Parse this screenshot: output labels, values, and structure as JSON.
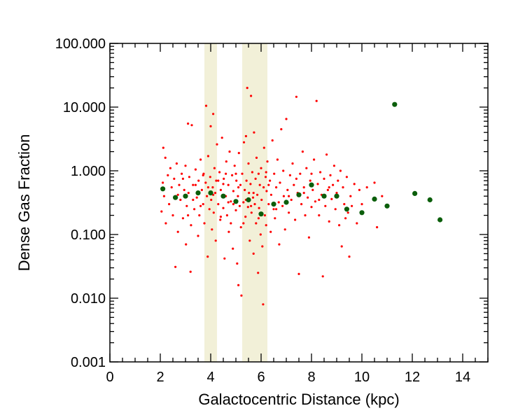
{
  "chart_data": {
    "type": "scatter",
    "xlabel": "Galactocentric Distance (kpc)",
    "ylabel": "Dense Gas Fraction",
    "xlim": [
      0,
      15
    ],
    "ylim": [
      0.001,
      100
    ],
    "yscale": "log",
    "x_ticks": [
      0,
      2,
      4,
      6,
      8,
      10,
      12,
      14
    ],
    "x_tick_labels": [
      "0",
      "2",
      "4",
      "6",
      "8",
      "10",
      "12",
      "14"
    ],
    "y_ticks": [
      0.001,
      0.01,
      0.1,
      1,
      10,
      100
    ],
    "y_tick_labels": [
      "0.001",
      "0.010",
      "0.100",
      "1.000",
      "10.000",
      "100.000"
    ],
    "shaded_bands": [
      {
        "x_start": 3.75,
        "x_end": 4.25,
        "color": "#f2f0d8"
      },
      {
        "x_start": 5.25,
        "x_end": 6.25,
        "color": "#f2f0d8"
      }
    ],
    "series": [
      {
        "color": "#ff0000",
        "marker_size": "small",
        "points": [
          [
            2.05,
            0.23
          ],
          [
            2.1,
            0.65
          ],
          [
            2.12,
            2.3
          ],
          [
            2.15,
            0.4
          ],
          [
            2.2,
            1.6
          ],
          [
            2.22,
            0.15
          ],
          [
            2.3,
            0.85
          ],
          [
            2.35,
            0.3
          ],
          [
            2.4,
            1.1
          ],
          [
            2.45,
            0.55
          ],
          [
            2.5,
            0.2
          ],
          [
            2.55,
            0.75
          ],
          [
            2.6,
            0.031
          ],
          [
            2.62,
            0.4
          ],
          [
            2.65,
            1.3
          ],
          [
            2.7,
            0.11
          ],
          [
            2.75,
            0.6
          ],
          [
            2.8,
            0.35
          ],
          [
            2.85,
            0.9
          ],
          [
            2.9,
            0.18
          ],
          [
            2.95,
            0.5
          ],
          [
            3.0,
            1.2
          ],
          [
            3.02,
            0.07
          ],
          [
            3.05,
            0.28
          ],
          [
            3.1,
            5.5
          ],
          [
            3.12,
            0.45
          ],
          [
            3.15,
            0.8
          ],
          [
            3.2,
            0.026
          ],
          [
            3.22,
            0.14
          ],
          [
            3.25,
            5.2
          ],
          [
            3.3,
            0.6
          ],
          [
            3.35,
            0.25
          ],
          [
            3.4,
            1.05
          ],
          [
            3.45,
            0.38
          ],
          [
            3.5,
            0.095
          ],
          [
            3.52,
            0.7
          ],
          [
            3.55,
            0.2
          ],
          [
            3.6,
            1.5
          ],
          [
            3.65,
            0.5
          ],
          [
            3.7,
            0.3
          ],
          [
            3.72,
            0.9
          ],
          [
            3.75,
            0.15
          ],
          [
            3.8,
            0.65
          ],
          [
            3.82,
            10.5
          ],
          [
            3.85,
            0.4
          ],
          [
            3.88,
            0.045
          ],
          [
            3.9,
            1.7
          ],
          [
            3.95,
            0.25
          ],
          [
            3.98,
            0.8
          ],
          [
            4.0,
            5.0
          ],
          [
            4.02,
            0.35
          ],
          [
            4.05,
            0.12
          ],
          [
            4.08,
            0.55
          ],
          [
            4.1,
            7.8
          ],
          [
            4.12,
            0.22
          ],
          [
            4.15,
            1.1
          ],
          [
            4.18,
            0.45
          ],
          [
            4.2,
            0.08
          ],
          [
            4.22,
            0.7
          ],
          [
            4.25,
            2.6
          ],
          [
            4.3,
            0.3
          ],
          [
            4.35,
            0.95
          ],
          [
            4.38,
            0.17
          ],
          [
            4.4,
            0.5
          ],
          [
            4.45,
            3.3
          ],
          [
            4.5,
            0.26
          ],
          [
            4.52,
            0.75
          ],
          [
            4.55,
            0.042
          ],
          [
            4.6,
            0.4
          ],
          [
            4.62,
            1.4
          ],
          [
            4.65,
            0.2
          ],
          [
            4.7,
            0.6
          ],
          [
            4.72,
            0.11
          ],
          [
            4.75,
            2.0
          ],
          [
            4.8,
            0.33
          ],
          [
            4.85,
            0.85
          ],
          [
            4.88,
            0.06
          ],
          [
            4.9,
            0.48
          ],
          [
            4.95,
            1.2
          ],
          [
            5.0,
            0.24
          ],
          [
            5.02,
            0.7
          ],
          [
            5.05,
            0.035
          ],
          [
            5.08,
            0.4
          ],
          [
            5.1,
            0.016
          ],
          [
            5.12,
            1.9
          ],
          [
            5.15,
            0.28
          ],
          [
            5.18,
            0.6
          ],
          [
            5.2,
            0.13
          ],
          [
            5.22,
            0.011
          ],
          [
            5.25,
            0.9
          ],
          [
            5.3,
            0.32
          ],
          [
            5.32,
            2.8
          ],
          [
            5.35,
            0.5
          ],
          [
            5.38,
            0.19
          ],
          [
            5.4,
            3.5
          ],
          [
            5.42,
            0.7
          ],
          [
            5.45,
            20.0
          ],
          [
            5.48,
            0.27
          ],
          [
            5.5,
            1.3
          ],
          [
            5.52,
            0.45
          ],
          [
            5.55,
            0.08
          ],
          [
            5.58,
            0.62
          ],
          [
            5.6,
            15.0
          ],
          [
            5.62,
            0.22
          ],
          [
            5.65,
            0.95
          ],
          [
            5.68,
            0.38
          ],
          [
            5.7,
            0.05
          ],
          [
            5.72,
            4.0
          ],
          [
            5.75,
            0.3
          ],
          [
            5.78,
            0.75
          ],
          [
            5.8,
            0.15
          ],
          [
            5.82,
            1.6
          ],
          [
            5.85,
            0.42
          ],
          [
            5.88,
            0.025
          ],
          [
            5.9,
            0.9
          ],
          [
            5.92,
            0.26
          ],
          [
            5.95,
            0.6
          ],
          [
            5.98,
            0.1
          ],
          [
            6.0,
            1.1
          ],
          [
            6.02,
            0.35
          ],
          [
            6.05,
            0.065
          ],
          [
            6.08,
            0.008
          ],
          [
            6.1,
            0.55
          ],
          [
            6.12,
            2.3
          ],
          [
            6.15,
            0.2
          ],
          [
            6.18,
            0.8
          ],
          [
            6.2,
            0.14
          ],
          [
            6.22,
            0.48
          ],
          [
            6.25,
            1.4
          ],
          [
            6.3,
            0.3
          ],
          [
            6.35,
            0.7
          ],
          [
            6.38,
            0.11
          ],
          [
            6.4,
            0.42
          ],
          [
            6.45,
            3.0
          ],
          [
            6.5,
            0.25
          ],
          [
            6.52,
            0.9
          ],
          [
            6.55,
            0.18
          ],
          [
            6.6,
            0.55
          ],
          [
            6.65,
            1.5
          ],
          [
            6.7,
            0.32
          ],
          [
            6.72,
            0.07
          ],
          [
            6.75,
            0.65
          ],
          [
            6.8,
            4.5
          ],
          [
            6.85,
            0.28
          ],
          [
            6.88,
            1.0
          ],
          [
            6.9,
            0.4
          ],
          [
            6.95,
            0.12
          ],
          [
            7.0,
            6.5
          ],
          [
            7.05,
            0.5
          ],
          [
            7.1,
            0.22
          ],
          [
            7.15,
            0.85
          ],
          [
            7.2,
            0.35
          ],
          [
            7.25,
            1.3
          ],
          [
            7.3,
            0.6
          ],
          [
            7.35,
            0.17
          ],
          [
            7.4,
            14.5
          ],
          [
            7.45,
            0.45
          ],
          [
            7.5,
            0.024
          ],
          [
            7.55,
            0.9
          ],
          [
            7.6,
            0.3
          ],
          [
            7.65,
            2.0
          ],
          [
            7.7,
            0.55
          ],
          [
            7.75,
            0.2
          ],
          [
            7.8,
            1.1
          ],
          [
            7.85,
            0.38
          ],
          [
            7.9,
            0.09
          ],
          [
            7.95,
            0.7
          ],
          [
            8.0,
            0.27
          ],
          [
            8.05,
            0.5
          ],
          [
            8.1,
            1.5
          ],
          [
            8.15,
            0.33
          ],
          [
            8.2,
            12.5
          ],
          [
            8.25,
            0.62
          ],
          [
            8.3,
            0.2
          ],
          [
            8.35,
            0.95
          ],
          [
            8.4,
            0.42
          ],
          [
            8.45,
            0.022
          ],
          [
            8.5,
            0.75
          ],
          [
            8.55,
            0.28
          ],
          [
            8.6,
            1.8
          ],
          [
            8.65,
            0.5
          ],
          [
            8.7,
            0.16
          ],
          [
            8.75,
            0.85
          ],
          [
            8.8,
            0.36
          ],
          [
            8.85,
            0.6
          ],
          [
            8.9,
            1.2
          ],
          [
            8.95,
            0.25
          ],
          [
            9.0,
            0.45
          ],
          [
            9.05,
            0.7
          ],
          [
            9.1,
            0.14
          ],
          [
            9.15,
            1.0
          ],
          [
            9.2,
            0.065
          ],
          [
            9.25,
            0.55
          ],
          [
            9.3,
            0.3
          ],
          [
            9.35,
            0.18
          ],
          [
            9.4,
            0.8
          ],
          [
            9.45,
            0.22
          ],
          [
            9.5,
            0.045
          ],
          [
            9.55,
            0.4
          ],
          [
            9.6,
            0.28
          ],
          [
            9.7,
            0.62
          ],
          [
            9.8,
            0.15
          ],
          [
            9.9,
            0.5
          ],
          [
            10.0,
            0.3
          ],
          [
            10.2,
            0.55
          ],
          [
            10.5,
            0.65
          ],
          [
            10.6,
            0.13
          ],
          [
            10.8,
            0.4
          ],
          [
            4.3,
            0.7
          ],
          [
            4.6,
            0.9
          ],
          [
            4.9,
            0.3
          ],
          [
            5.1,
            0.55
          ],
          [
            5.4,
            0.35
          ],
          [
            5.7,
            0.45
          ],
          [
            5.9,
            0.18
          ],
          [
            6.3,
            0.6
          ],
          [
            3.3,
            0.35
          ],
          [
            3.6,
            0.28
          ],
          [
            3.9,
            0.55
          ],
          [
            4.4,
            0.19
          ],
          [
            4.7,
            0.32
          ],
          [
            5.0,
            0.9
          ],
          [
            5.3,
            0.15
          ],
          [
            5.6,
            0.28
          ],
          [
            6.2,
            0.95
          ],
          [
            6.6,
            0.25
          ],
          [
            7.1,
            0.4
          ],
          [
            7.4,
            0.75
          ],
          [
            7.7,
            0.45
          ],
          [
            8.0,
            0.9
          ],
          [
            8.3,
            0.35
          ],
          [
            8.7,
            0.55
          ],
          [
            2.7,
            0.42
          ],
          [
            2.9,
            0.75
          ],
          [
            3.1,
            0.2
          ],
          [
            3.4,
            0.6
          ],
          [
            3.7,
            0.85
          ],
          [
            4.1,
            0.42
          ],
          [
            4.5,
            0.62
          ],
          [
            4.8,
            0.15
          ]
        ]
      },
      {
        "color": "#0b5e0b",
        "marker_size": "large",
        "points": [
          [
            2.1,
            0.52
          ],
          [
            2.6,
            0.38
          ],
          [
            3.0,
            0.4
          ],
          [
            3.5,
            0.45
          ],
          [
            4.0,
            0.45
          ],
          [
            4.5,
            0.4
          ],
          [
            5.0,
            0.33
          ],
          [
            5.5,
            0.35
          ],
          [
            6.0,
            0.21
          ],
          [
            6.5,
            0.3
          ],
          [
            7.0,
            0.32
          ],
          [
            7.5,
            0.42
          ],
          [
            8.0,
            0.6
          ],
          [
            8.5,
            0.4
          ],
          [
            9.0,
            0.4
          ],
          [
            9.4,
            0.25
          ],
          [
            10.0,
            0.22
          ],
          [
            10.5,
            0.36
          ],
          [
            11.0,
            0.28
          ],
          [
            11.3,
            11.0
          ],
          [
            12.1,
            0.44
          ],
          [
            12.7,
            0.35
          ],
          [
            13.1,
            0.17
          ]
        ]
      }
    ]
  }
}
